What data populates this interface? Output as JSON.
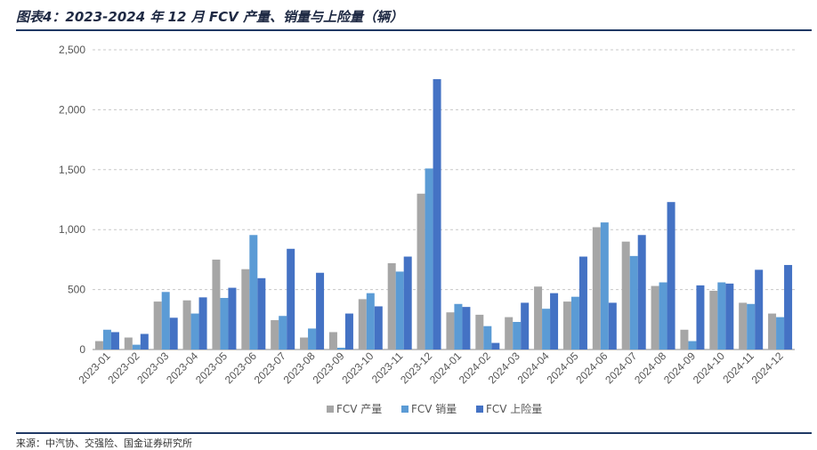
{
  "header": {
    "title": "图表4：2023-2024 年 12 月 FCV 产量、销量与上险量（辆）"
  },
  "footer": {
    "source": "来源：中汽协、交强险、国金证券研究所"
  },
  "colors": {
    "production": "#a6a6a6",
    "sales": "#5b9bd5",
    "insurance": "#4472c4",
    "rule": "#1f3864",
    "grid": "#c8c8c8"
  },
  "chart_data": {
    "type": "bar",
    "title": "",
    "xlabel": "",
    "ylabel": "",
    "ylim": [
      0,
      2500
    ],
    "yticks": [
      0,
      500,
      1000,
      1500,
      2000,
      2500
    ],
    "ytick_labels": [
      "0",
      "500",
      "1,000",
      "1,500",
      "2,000",
      "2,500"
    ],
    "grid": true,
    "legend_position": "bottom",
    "categories": [
      "2023-01",
      "2023-02",
      "2023-03",
      "2023-04",
      "2023-05",
      "2023-06",
      "2023-07",
      "2023-08",
      "2023-09",
      "2023-10",
      "2023-11",
      "2023-12",
      "2024-01",
      "2024-02",
      "2024-03",
      "2024-04",
      "2024-05",
      "2024-06",
      "2024-07",
      "2024-08",
      "2024-09",
      "2024-10",
      "2024-11",
      "2024-12"
    ],
    "series": [
      {
        "name": "FCV 产量",
        "color": "#a6a6a6",
        "values": [
          70,
          100,
          400,
          410,
          750,
          670,
          245,
          100,
          145,
          420,
          720,
          1300,
          310,
          290,
          270,
          525,
          400,
          1020,
          900,
          530,
          165,
          490,
          390,
          300
        ]
      },
      {
        "name": "FCV 销量",
        "color": "#5b9bd5",
        "values": [
          165,
          40,
          480,
          300,
          430,
          955,
          280,
          175,
          15,
          470,
          650,
          1510,
          380,
          195,
          230,
          340,
          440,
          1060,
          780,
          560,
          70,
          560,
          380,
          270
        ]
      },
      {
        "name": "FCV 上险量",
        "color": "#4472c4",
        "values": [
          145,
          130,
          265,
          435,
          515,
          595,
          840,
          640,
          300,
          360,
          775,
          2255,
          355,
          55,
          390,
          470,
          775,
          390,
          955,
          1230,
          535,
          550,
          665,
          705
        ]
      }
    ]
  }
}
